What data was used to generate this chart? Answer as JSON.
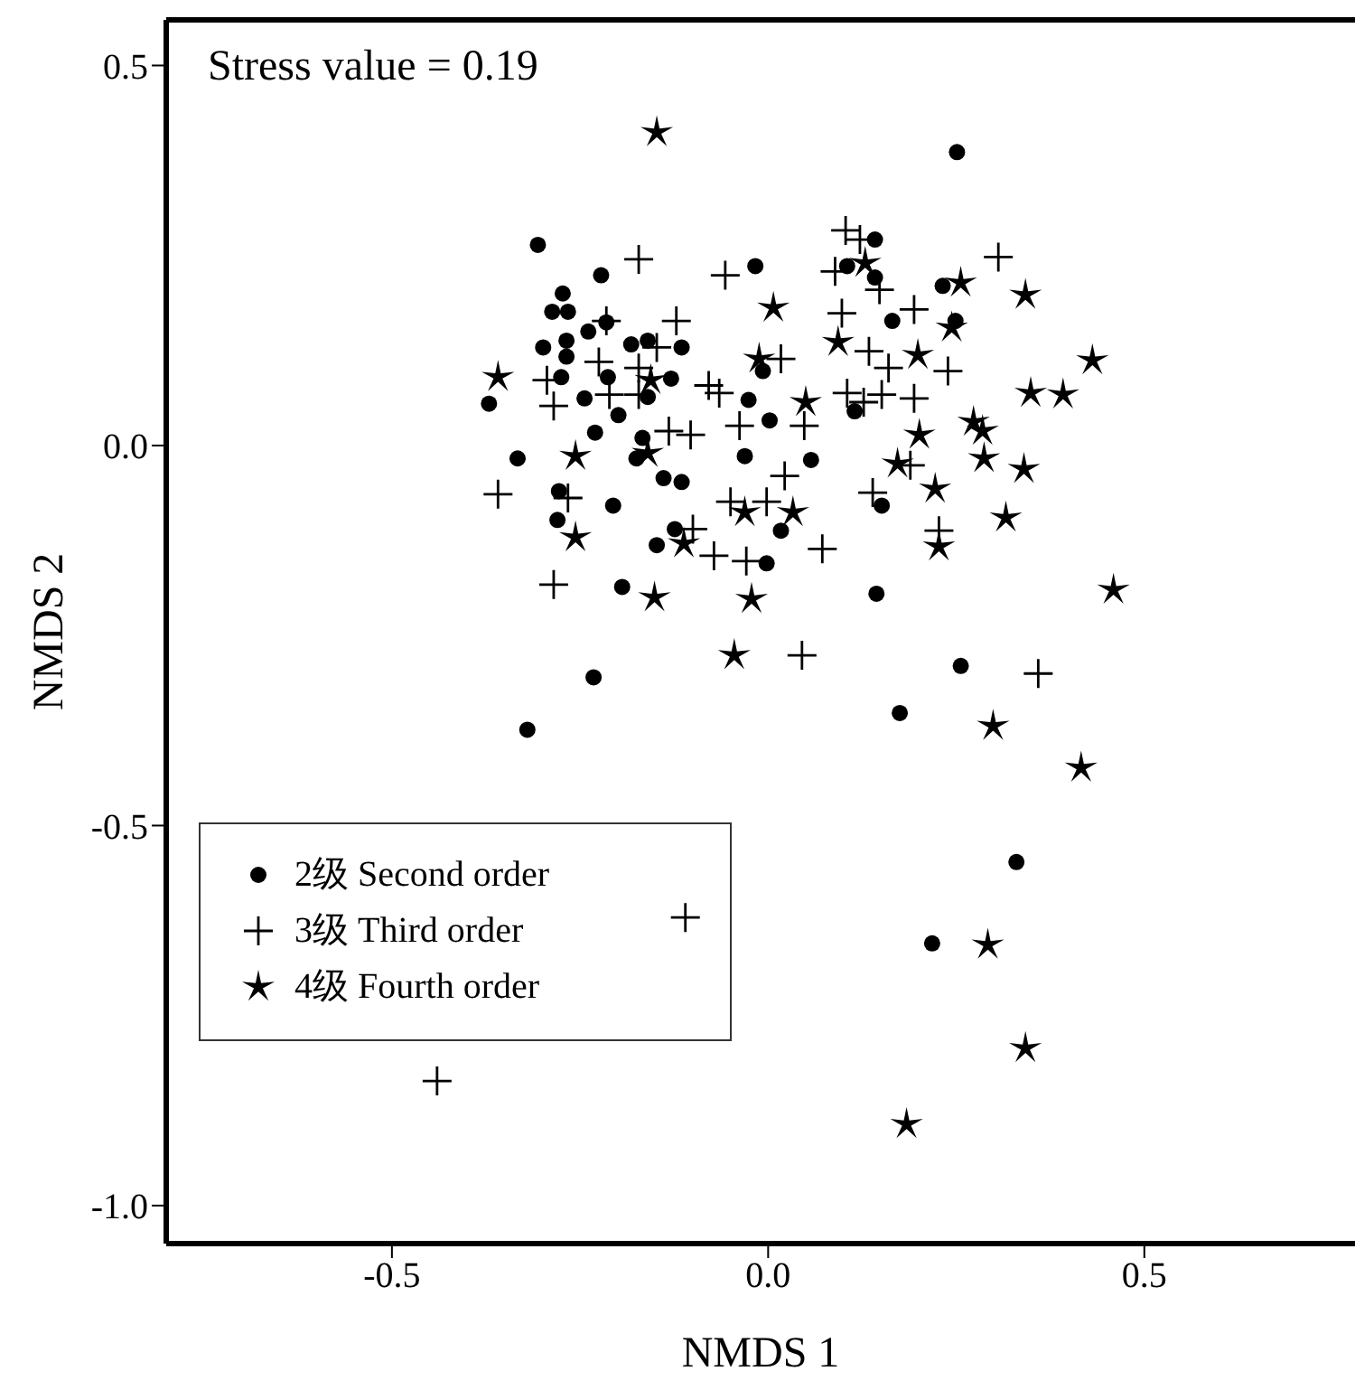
{
  "chart_data": {
    "type": "scatter",
    "xlabel": "NMDS 1",
    "ylabel": "NMDS 2",
    "annotations": [
      "Stress value = 0.19"
    ],
    "xlim": [
      -0.8,
      0.78
    ],
    "ylim": [
      -1.05,
      0.56
    ],
    "xticks": [
      {
        "value": -0.5,
        "label": "-0.5"
      },
      {
        "value": 0,
        "label": "0.0"
      },
      {
        "value": 0.5,
        "label": "0.5"
      }
    ],
    "yticks": [
      {
        "value": -1,
        "label": "-1.0"
      },
      {
        "value": -0.5,
        "label": "-0.5"
      },
      {
        "value": 0,
        "label": "0.0"
      },
      {
        "value": 0.5,
        "label": "0.5"
      }
    ],
    "grid": false,
    "legend": "bottom left",
    "series": [
      {
        "name": "2级 Second order",
        "color": "#000000",
        "marker": "circle",
        "x": [
          -0.306,
          -0.222,
          -0.273,
          -0.287,
          -0.266,
          -0.239,
          -0.215,
          -0.299,
          -0.268,
          -0.268,
          -0.182,
          -0.16,
          -0.115,
          -0.275,
          -0.213,
          -0.244,
          -0.16,
          -0.129,
          -0.199,
          -0.371,
          -0.333,
          -0.23,
          -0.167,
          -0.175,
          -0.139,
          -0.115,
          -0.278,
          -0.28,
          -0.206,
          -0.124,
          -0.148,
          -0.194,
          -0.017,
          -0.007,
          -0.026,
          0.002,
          -0.031,
          0.057,
          0.017,
          -0.002,
          0.251,
          0.142,
          0.105,
          0.142,
          0.232,
          0.165,
          0.249,
          0.115,
          0.151,
          0.144,
          0.256,
          -0.232,
          -0.32,
          0.175,
          0.33,
          0.218
        ],
        "values": [
          0.264,
          0.224,
          0.2,
          0.176,
          0.176,
          0.15,
          0.162,
          0.129,
          0.138,
          0.117,
          0.133,
          0.138,
          0.129,
          0.09,
          0.09,
          0.062,
          0.064,
          0.088,
          0.04,
          0.055,
          -0.017,
          0.017,
          0.01,
          -0.017,
          -0.043,
          -0.048,
          -0.06,
          -0.098,
          -0.079,
          -0.11,
          -0.131,
          -0.186,
          0.236,
          0.098,
          0.06,
          0.033,
          -0.014,
          -0.019,
          -0.112,
          -0.155,
          0.386,
          0.271,
          0.236,
          0.221,
          0.21,
          0.164,
          0.164,
          0.045,
          -0.079,
          -0.195,
          -0.29,
          -0.305,
          -0.374,
          -0.352,
          -0.548,
          -0.655
        ]
      },
      {
        "name": "3级 Third order",
        "color": "#000000",
        "marker": "cross",
        "x": [
          -0.172,
          -0.057,
          -0.215,
          -0.122,
          -0.148,
          -0.225,
          0.017,
          -0.294,
          -0.172,
          -0.285,
          -0.211,
          -0.172,
          -0.079,
          -0.065,
          -0.132,
          -0.103,
          -0.038,
          0.048,
          -0.359,
          -0.266,
          0.022,
          -0.002,
          -0.05,
          -0.1,
          -0.072,
          -0.029,
          -0.285,
          0.045,
          0.103,
          0.122,
          0.089,
          0.148,
          0.306,
          0.194,
          0.098,
          0.134,
          0.16,
          0.239,
          0.105,
          0.151,
          0.127,
          0.194,
          0.189,
          0.139,
          0.227,
          0.072,
          0.359,
          -0.11,
          -0.44
        ],
        "values": [
          0.245,
          0.224,
          0.164,
          0.164,
          0.129,
          0.11,
          0.114,
          0.086,
          0.102,
          0.052,
          0.067,
          0.067,
          0.079,
          0.069,
          0.019,
          0.014,
          0.026,
          0.026,
          -0.064,
          -0.069,
          -0.04,
          -0.074,
          -0.074,
          -0.11,
          -0.145,
          -0.152,
          -0.183,
          -0.276,
          0.283,
          0.271,
          0.229,
          0.205,
          0.248,
          0.179,
          0.174,
          0.124,
          0.102,
          0.098,
          0.069,
          0.067,
          0.057,
          0.062,
          -0.026,
          -0.062,
          -0.112,
          -0.136,
          -0.3,
          -0.621,
          -0.836
        ]
      },
      {
        "name": "4级 Fourth order",
        "color": "#000000",
        "marker": "star",
        "x": [
          0.007,
          -0.359,
          -0.012,
          -0.156,
          0.05,
          -0.256,
          -0.16,
          -0.031,
          0.033,
          -0.256,
          -0.112,
          -0.151,
          -0.022,
          -0.045,
          0.129,
          0.256,
          0.342,
          0.093,
          0.199,
          0.244,
          0.431,
          0.349,
          0.392,
          0.273,
          0.285,
          0.201,
          0.172,
          0.287,
          0.34,
          0.222,
          0.316,
          0.227,
          0.459,
          0.299,
          0.416,
          0.292,
          0.342,
          0.184,
          -0.148
        ],
        "values": [
          0.181,
          0.09,
          0.114,
          0.086,
          0.057,
          -0.014,
          -0.01,
          -0.088,
          -0.088,
          -0.121,
          -0.129,
          -0.2,
          -0.202,
          -0.276,
          0.24,
          0.214,
          0.198,
          0.136,
          0.119,
          0.155,
          0.112,
          0.069,
          0.067,
          0.031,
          0.019,
          0.014,
          -0.024,
          -0.017,
          -0.031,
          -0.057,
          -0.095,
          -0.133,
          -0.19,
          -0.369,
          -0.424,
          -0.657,
          -0.793,
          -0.893,
          0.412
        ]
      }
    ]
  }
}
